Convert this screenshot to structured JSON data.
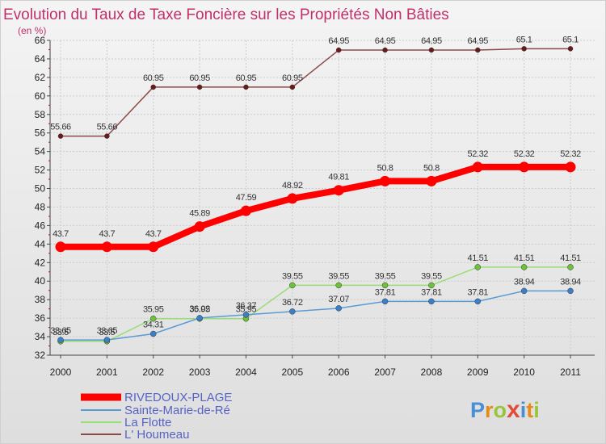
{
  "chart_data": {
    "type": "line",
    "title": "Evolution du Taux de Taxe Foncière sur les Propriétés Non Bâties",
    "ylabel": "(en %)",
    "xlabel": "",
    "x": [
      "2000",
      "2001",
      "2002",
      "2003",
      "2004",
      "2005",
      "2006",
      "2007",
      "2008",
      "2009",
      "2010",
      "2011"
    ],
    "ylim": [
      32,
      66
    ],
    "yticks": [
      32,
      34,
      36,
      38,
      40,
      42,
      44,
      46,
      48,
      50,
      52,
      54,
      56,
      58,
      60,
      62,
      64,
      66
    ],
    "series": [
      {
        "name": "RIVEDOUX-PLAGE",
        "color": "#ff0000",
        "values": [
          43.7,
          43.7,
          43.7,
          45.89,
          47.59,
          48.92,
          49.81,
          50.8,
          50.8,
          52.32,
          52.32,
          52.32
        ],
        "labels": [
          "43.7",
          "43.7",
          "43.7",
          "45.89",
          "47.59",
          "48.92",
          "49.81",
          "50.8",
          "50.8",
          "52.32",
          "52.32",
          "52.32"
        ]
      },
      {
        "name": "Sainte-Marie-de-Ré",
        "color": "#5b9bd5",
        "values": [
          33.65,
          33.65,
          34.31,
          36.02,
          36.37,
          36.72,
          37.07,
          37.81,
          37.81,
          37.81,
          38.94,
          38.94
        ],
        "labels": [
          "33.65",
          "33.65",
          "34.31",
          "36.02",
          "36.37",
          "36.72",
          "37.07",
          "37.81",
          "37.81",
          "37.81",
          "38.94",
          "38.94"
        ]
      },
      {
        "name": "La Flotte",
        "color": "#99dd77",
        "values": [
          33.5,
          33.5,
          35.95,
          35.95,
          35.95,
          39.55,
          39.55,
          39.55,
          39.55,
          41.51,
          41.51,
          41.51
        ],
        "labels": [
          "33.5",
          "33.5",
          "35.95",
          "35.95",
          "35.95",
          "39.55",
          "39.55",
          "39.55",
          "39.55",
          "41.51",
          "41.51",
          "41.51"
        ]
      },
      {
        "name": "L' Houmeau",
        "color": "#8b4a4a",
        "values": [
          55.66,
          55.66,
          60.95,
          60.95,
          60.95,
          60.95,
          64.95,
          64.95,
          64.95,
          64.95,
          65.1,
          65.1
        ],
        "labels": [
          "55.66",
          "55.66",
          "60.95",
          "60.95",
          "60.95",
          "60.95",
          "64.95",
          "64.95",
          "64.95",
          "64.95",
          "65.1",
          "65.1"
        ]
      }
    ],
    "legend_position": "bottom-left"
  },
  "logo": {
    "text": "Prox",
    "x_letter": "x",
    "rest": "iti",
    "full": "Proxiti"
  }
}
